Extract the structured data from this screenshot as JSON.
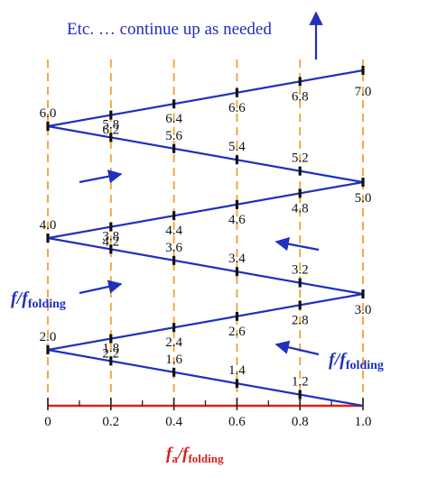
{
  "header": {
    "note": "Etc. … continue up as needed"
  },
  "labels": {
    "folding_left": {
      "main": "f",
      "sep": "/f",
      "sub": "folding"
    },
    "folding_right": {
      "main": "f",
      "sep": "/f",
      "sub": "folding"
    },
    "x_axis": {
      "main": "f",
      "sub1": "a",
      "sep": "/f",
      "sub2": "folding"
    }
  },
  "x_ticks": [
    "0",
    "0.2",
    "0.4",
    "0.6",
    "0.8",
    "1.0"
  ],
  "minor_ticks": [
    0.1,
    0.3,
    0.5,
    0.7,
    0.9
  ],
  "vertices": [
    {
      "value": "2.0",
      "x": 0.0,
      "y": 2.0
    },
    {
      "value": "3.0",
      "x": 1.0,
      "y": 3.0
    },
    {
      "value": "4.0",
      "x": 0.0,
      "y": 4.0
    },
    {
      "value": "5.0",
      "x": 1.0,
      "y": 5.0
    },
    {
      "value": "6.0",
      "x": 0.0,
      "y": 6.0
    },
    {
      "value": "7.0",
      "x": 1.0,
      "y": 7.0
    }
  ],
  "points": [
    {
      "value": "1.2",
      "x": 0.8,
      "y": 1.2
    },
    {
      "value": "1.4",
      "x": 0.6,
      "y": 1.4
    },
    {
      "value": "1.6",
      "x": 0.4,
      "y": 1.6
    },
    {
      "value": "1.8",
      "x": 0.2,
      "y": 1.8
    },
    {
      "value": "2.2",
      "x": 0.2,
      "y": 2.2
    },
    {
      "value": "2.4",
      "x": 0.4,
      "y": 2.4
    },
    {
      "value": "2.6",
      "x": 0.6,
      "y": 2.6
    },
    {
      "value": "2.8",
      "x": 0.8,
      "y": 2.8
    },
    {
      "value": "3.2",
      "x": 0.8,
      "y": 3.2
    },
    {
      "value": "3.4",
      "x": 0.6,
      "y": 3.4
    },
    {
      "value": "3.6",
      "x": 0.4,
      "y": 3.6
    },
    {
      "value": "3.8",
      "x": 0.2,
      "y": 3.8
    },
    {
      "value": "4.2",
      "x": 0.2,
      "y": 4.2
    },
    {
      "value": "4.4",
      "x": 0.4,
      "y": 4.4
    },
    {
      "value": "4.6",
      "x": 0.6,
      "y": 4.6
    },
    {
      "value": "4.8",
      "x": 0.8,
      "y": 4.8
    },
    {
      "value": "5.2",
      "x": 0.8,
      "y": 5.2
    },
    {
      "value": "5.4",
      "x": 0.6,
      "y": 5.4
    },
    {
      "value": "5.6",
      "x": 0.4,
      "y": 5.6
    },
    {
      "value": "5.8",
      "x": 0.2,
      "y": 5.8
    },
    {
      "value": "6.2",
      "x": 0.2,
      "y": 6.2
    },
    {
      "value": "6.4",
      "x": 0.4,
      "y": 6.4
    },
    {
      "value": "6.6",
      "x": 0.6,
      "y": 6.6
    },
    {
      "value": "6.8",
      "x": 0.8,
      "y": 6.8
    }
  ],
  "zigzag": [
    {
      "x": 1.0,
      "y": 1.0
    },
    {
      "x": 0.0,
      "y": 2.0
    },
    {
      "x": 1.0,
      "y": 3.0
    },
    {
      "x": 0.0,
      "y": 4.0
    },
    {
      "x": 1.0,
      "y": 5.0
    },
    {
      "x": 0.0,
      "y": 6.0
    },
    {
      "x": 1.0,
      "y": 7.0
    }
  ],
  "colors": {
    "zigzag": "#1f2fbf",
    "gridline": "#f0a030",
    "axis": "#d8201c",
    "text": "#111111",
    "label_blue": "#1f2fbf"
  }
}
